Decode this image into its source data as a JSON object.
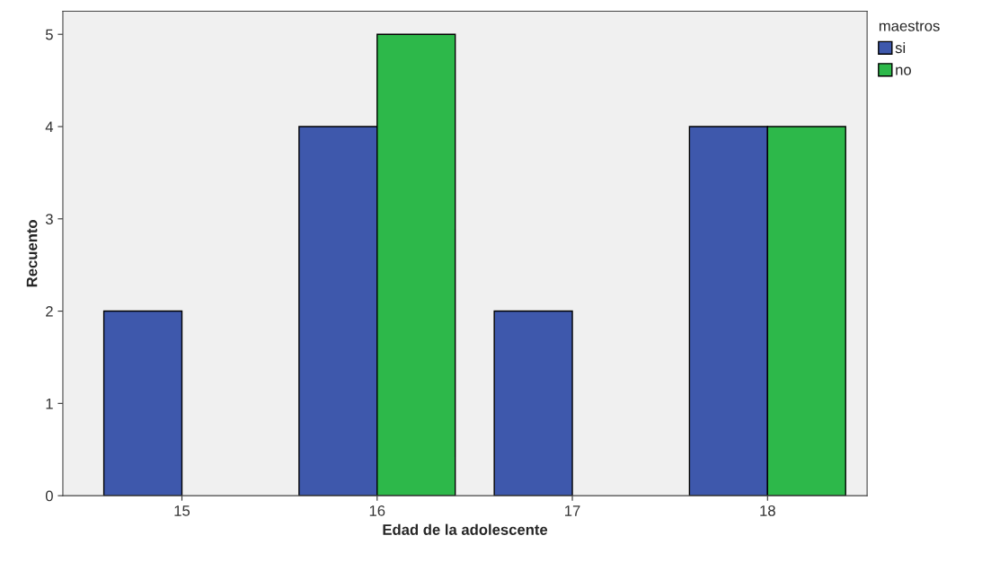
{
  "chart_data": {
    "type": "bar",
    "xlabel": "Edad de la adolescente",
    "ylabel": "Recuento",
    "legend_title": "maestros",
    "categories": [
      "15",
      "16",
      "17",
      "18"
    ],
    "series": [
      {
        "name": "si",
        "color": "#3e58ac",
        "values": [
          2,
          4,
          2,
          4
        ]
      },
      {
        "name": "no",
        "color": "#2db84a",
        "values": [
          null,
          5,
          null,
          4
        ]
      }
    ],
    "ylim": [
      0,
      5.25
    ],
    "yticks": [
      0,
      1,
      2,
      3,
      4,
      5
    ],
    "grid": false,
    "legend": "top right"
  }
}
